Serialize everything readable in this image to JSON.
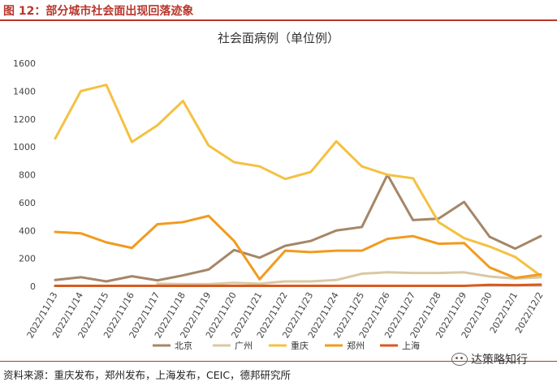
{
  "figure_title": "图 12：部分城市社会面出现回落迹象",
  "source": "资料来源：重庆发布，郑州发布，上海发布，CEIC，德邦研究所",
  "watermark": "达策略知行",
  "chart_data": {
    "type": "line",
    "title": "社会面病例（单位例）",
    "xlabel": "",
    "ylabel": "",
    "ylim": [
      0,
      1600
    ],
    "yticks": [
      0,
      200,
      400,
      600,
      800,
      1000,
      1200,
      1400,
      1600
    ],
    "grid": false,
    "legend_position": "bottom",
    "categories": [
      "2022/11/13",
      "2022/11/14",
      "2022/11/15",
      "2022/11/16",
      "2022/11/17",
      "2022/11/18",
      "2022/11/19",
      "2022/11/20",
      "2022/11/21",
      "2022/11/22",
      "2022/11/23",
      "2022/11/24",
      "2022/11/25",
      "2022/11/26",
      "2022/11/27",
      "2022/11/28",
      "2022/11/29",
      "2022/11/30",
      "2022/12/1",
      "2022/12/2"
    ],
    "series": [
      {
        "name": "北京",
        "color": "#a58667",
        "values": [
          45,
          65,
          35,
          72,
          42,
          78,
          120,
          260,
          205,
          290,
          325,
          400,
          425,
          800,
          475,
          485,
          605,
          355,
          270,
          360
        ]
      },
      {
        "name": "广州",
        "color": "#d9c8a3",
        "values": [
          null,
          null,
          null,
          null,
          18,
          15,
          15,
          25,
          18,
          35,
          35,
          45,
          90,
          100,
          95,
          95,
          100,
          70,
          55,
          65
        ]
      },
      {
        "name": "重庆",
        "color": "#f4c142",
        "values": [
          1060,
          1400,
          1445,
          1035,
          1155,
          1330,
          1010,
          890,
          860,
          770,
          820,
          1040,
          860,
          800,
          775,
          460,
          345,
          285,
          210,
          75
        ]
      },
      {
        "name": "郑州",
        "color": "#f19b1f",
        "values": [
          390,
          380,
          315,
          275,
          445,
          460,
          505,
          325,
          50,
          255,
          245,
          255,
          255,
          340,
          360,
          305,
          310,
          135,
          60,
          85
        ]
      },
      {
        "name": "上海",
        "color": "#d85a1f",
        "values": [
          3,
          3,
          3,
          3,
          3,
          3,
          3,
          3,
          3,
          3,
          3,
          3,
          3,
          3,
          3,
          3,
          3,
          10,
          8,
          12
        ]
      }
    ]
  }
}
